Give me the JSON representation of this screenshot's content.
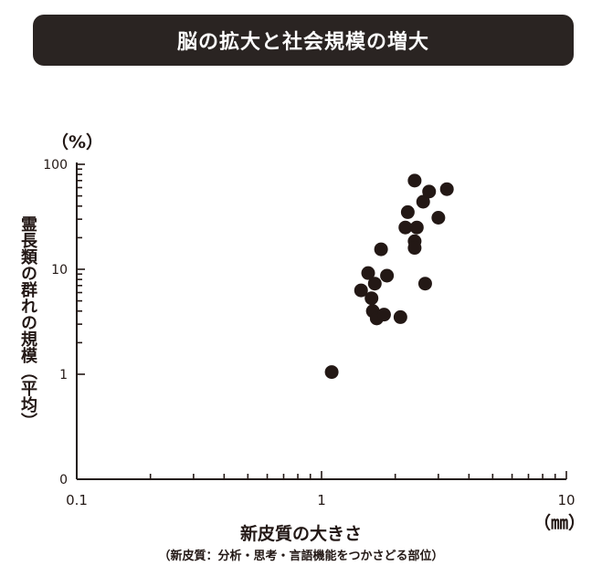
{
  "chart_data": {
    "type": "scatter",
    "title": "脳の拡大と社会規模の増大",
    "xlabel": "新皮質の大きさ",
    "xlabel_note": "（新皮質：分析・思考・言語機能をつかさどる部位）",
    "x_unit": "（㎜）",
    "ylabel": "霊長類の群れの規模（平均）",
    "y_unit": "（%）",
    "x_scale": "log",
    "y_scale": "log",
    "xlim": [
      0.1,
      10
    ],
    "ylim": [
      0,
      100
    ],
    "x_ticks": [
      "0.1",
      "1",
      "10"
    ],
    "y_ticks": [
      "0",
      "1",
      "10",
      "100"
    ],
    "grid": false,
    "marker_color": "#231815",
    "points": [
      {
        "x": 1.1,
        "y": 1.05
      },
      {
        "x": 1.45,
        "y": 6.3
      },
      {
        "x": 1.55,
        "y": 9.2
      },
      {
        "x": 1.6,
        "y": 5.3
      },
      {
        "x": 1.62,
        "y": 4.0
      },
      {
        "x": 1.65,
        "y": 7.3
      },
      {
        "x": 1.68,
        "y": 3.4
      },
      {
        "x": 1.75,
        "y": 15.5
      },
      {
        "x": 1.8,
        "y": 3.7
      },
      {
        "x": 1.85,
        "y": 8.7
      },
      {
        "x": 2.1,
        "y": 3.5
      },
      {
        "x": 2.2,
        "y": 25
      },
      {
        "x": 2.25,
        "y": 35
      },
      {
        "x": 2.4,
        "y": 70
      },
      {
        "x": 2.4,
        "y": 18.5
      },
      {
        "x": 2.4,
        "y": 16
      },
      {
        "x": 2.45,
        "y": 25
      },
      {
        "x": 2.6,
        "y": 44
      },
      {
        "x": 2.65,
        "y": 7.3
      },
      {
        "x": 2.75,
        "y": 55
      },
      {
        "x": 3.0,
        "y": 31
      },
      {
        "x": 3.25,
        "y": 58
      }
    ]
  }
}
